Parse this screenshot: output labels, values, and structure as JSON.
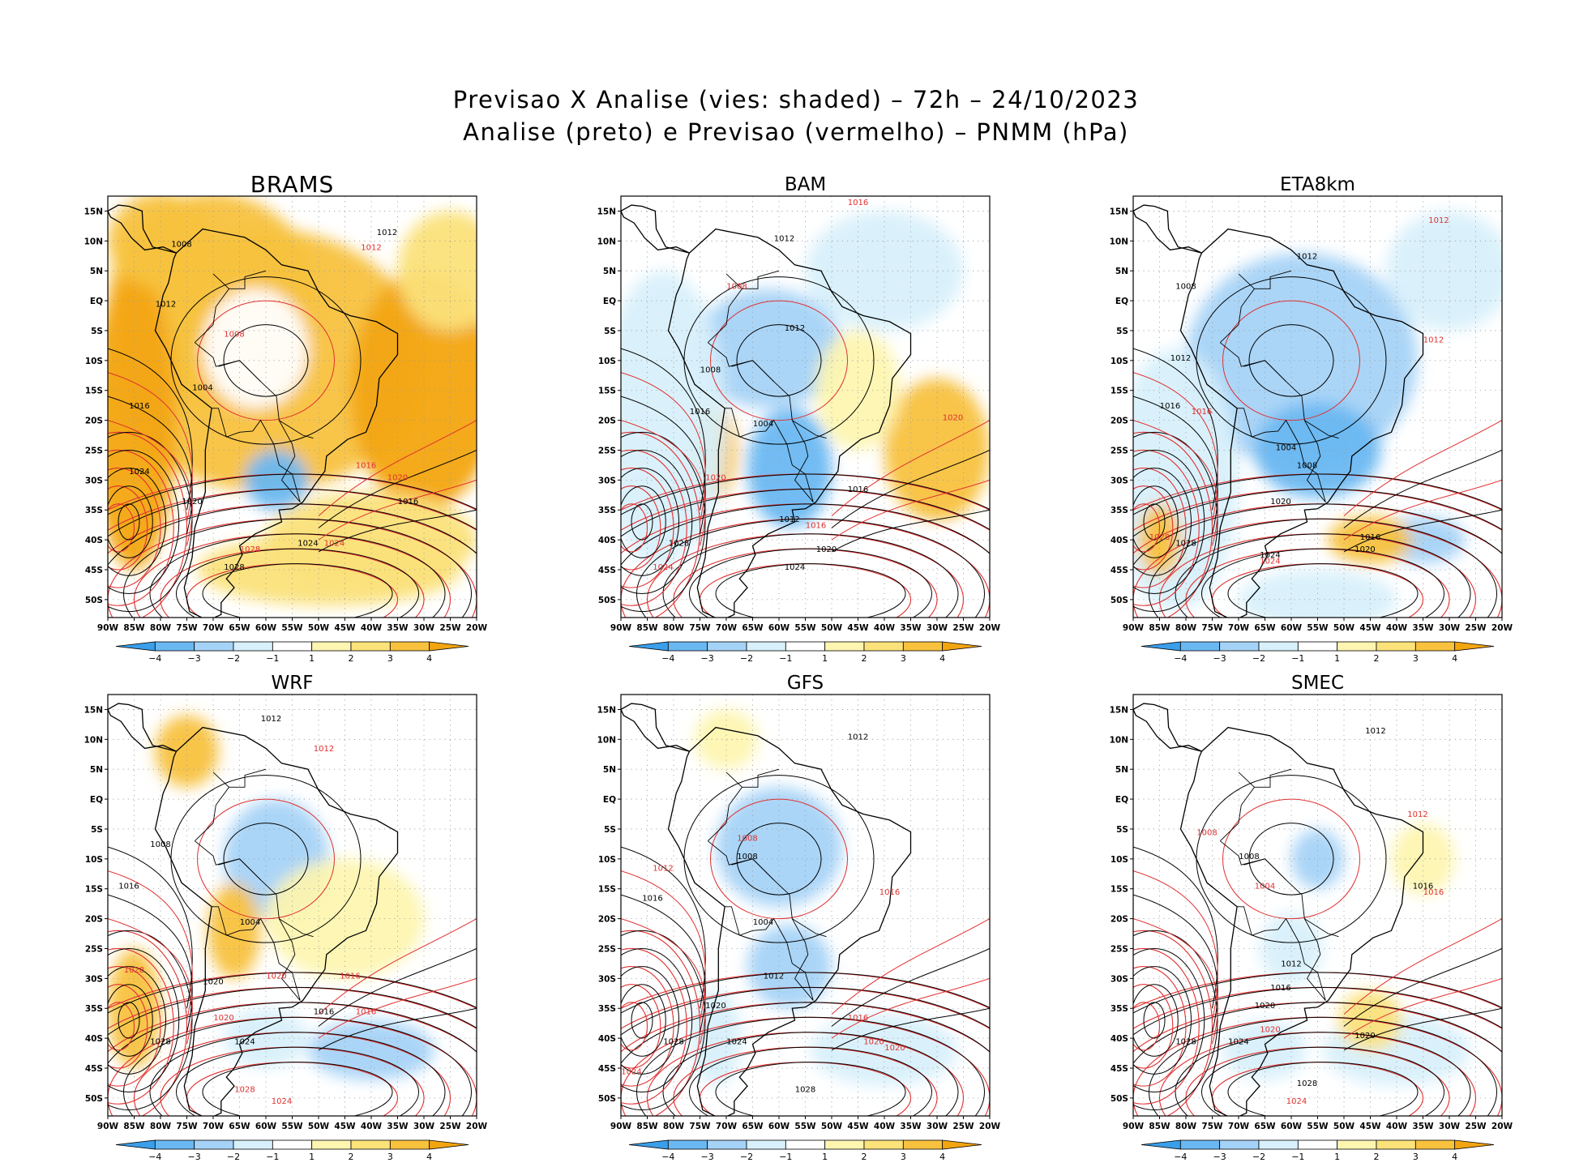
{
  "title_line1": "Previsao X Analise (vies: shaded) – 72h – 24/10/2023",
  "title_line2": "Analise (preto) e Previsao (vermelho) – PNMM (hPa)",
  "lat_labels": [
    "15N",
    "10N",
    "5N",
    "EQ",
    "5S",
    "10S",
    "15S",
    "20S",
    "25S",
    "30S",
    "35S",
    "40S",
    "45S",
    "50S"
  ],
  "lon_labels": [
    "90W",
    "85W",
    "80W",
    "75W",
    "70W",
    "65W",
    "60W",
    "55W",
    "50W",
    "45W",
    "40W",
    "35W",
    "30W",
    "25W",
    "20W"
  ],
  "colorbar": {
    "labels": [
      "−4",
      "−3",
      "−2",
      "−1",
      "1",
      "2",
      "3",
      "4"
    ],
    "colors": [
      "#3a9eea",
      "#6ab8f2",
      "#a5d3f7",
      "#d8f0fb",
      "#ffffff",
      "#fdf5b0",
      "#fbe27a",
      "#f8c23e",
      "#f3a510"
    ]
  },
  "colors": {
    "analysis_contour": "#000000",
    "forecast_contour": "#e03030"
  },
  "panels": [
    {
      "name": "BRAMS",
      "contour_labels": [
        {
          "text": "1008",
          "c": "k"
        },
        {
          "text": "1012",
          "c": "k"
        },
        {
          "text": "1012",
          "c": "r"
        },
        {
          "text": "1008",
          "c": "r"
        },
        {
          "text": "1012",
          "c": "k"
        },
        {
          "text": "1016",
          "c": "k"
        },
        {
          "text": "1004",
          "c": "k"
        },
        {
          "text": "1016",
          "c": "r"
        },
        {
          "text": "1020",
          "c": "k"
        },
        {
          "text": "1024",
          "c": "k"
        },
        {
          "text": "1020",
          "c": "r"
        },
        {
          "text": "1024",
          "c": "r"
        },
        {
          "text": "1028",
          "c": "r"
        },
        {
          "text": "1028",
          "c": "k"
        },
        {
          "text": "1016",
          "c": "k"
        },
        {
          "text": "1024",
          "c": "k"
        }
      ]
    },
    {
      "name": "BAM",
      "contour_labels": [
        {
          "text": "1016",
          "c": "r"
        },
        {
          "text": "1012",
          "c": "k"
        },
        {
          "text": "1008",
          "c": "r"
        },
        {
          "text": "1008",
          "c": "k"
        },
        {
          "text": "1012",
          "c": "k"
        },
        {
          "text": "1016",
          "c": "k"
        },
        {
          "text": "1004",
          "c": "k"
        },
        {
          "text": "1020",
          "c": "r"
        },
        {
          "text": "1016",
          "c": "r"
        },
        {
          "text": "1020",
          "c": "k"
        },
        {
          "text": "1024",
          "c": "r"
        },
        {
          "text": "1028",
          "c": "k"
        },
        {
          "text": "1024",
          "c": "k"
        },
        {
          "text": "1016",
          "c": "k"
        },
        {
          "text": "1012",
          "c": "k"
        },
        {
          "text": "1020",
          "c": "r"
        }
      ]
    },
    {
      "name": "ETA8km",
      "contour_labels": [
        {
          "text": "1012",
          "c": "r"
        },
        {
          "text": "1012",
          "c": "k"
        },
        {
          "text": "1008",
          "c": "k"
        },
        {
          "text": "1012",
          "c": "r"
        },
        {
          "text": "1012",
          "c": "k"
        },
        {
          "text": "1016",
          "c": "k"
        },
        {
          "text": "1016",
          "c": "r"
        },
        {
          "text": "1004",
          "c": "k"
        },
        {
          "text": "1008",
          "c": "k"
        },
        {
          "text": "1020",
          "c": "k"
        },
        {
          "text": "1016",
          "c": "k"
        },
        {
          "text": "1020",
          "c": "k"
        },
        {
          "text": "1028",
          "c": "r"
        },
        {
          "text": "1028",
          "c": "k"
        },
        {
          "text": "1024",
          "c": "k"
        },
        {
          "text": "1024",
          "c": "r"
        }
      ]
    },
    {
      "name": "WRF",
      "contour_labels": [
        {
          "text": "1012",
          "c": "k"
        },
        {
          "text": "1012",
          "c": "r"
        },
        {
          "text": "1008",
          "c": "k"
        },
        {
          "text": "1016",
          "c": "k"
        },
        {
          "text": "1004",
          "c": "k"
        },
        {
          "text": "1016",
          "c": "r"
        },
        {
          "text": "1020",
          "c": "k"
        },
        {
          "text": "1028",
          "c": "r"
        },
        {
          "text": "1028",
          "c": "k"
        },
        {
          "text": "1024",
          "c": "k"
        },
        {
          "text": "1020",
          "c": "r"
        },
        {
          "text": "1016",
          "c": "k"
        },
        {
          "text": "1016",
          "c": "r"
        },
        {
          "text": "1020",
          "c": "r"
        },
        {
          "text": "1028",
          "c": "r"
        },
        {
          "text": "1024",
          "c": "r"
        }
      ]
    },
    {
      "name": "GFS",
      "contour_labels": [
        {
          "text": "1012",
          "c": "k"
        },
        {
          "text": "1012",
          "c": "r"
        },
        {
          "text": "1008",
          "c": "r"
        },
        {
          "text": "1008",
          "c": "k"
        },
        {
          "text": "1016",
          "c": "k"
        },
        {
          "text": "1016",
          "c": "r"
        },
        {
          "text": "1004",
          "c": "k"
        },
        {
          "text": "1012",
          "c": "k"
        },
        {
          "text": "1020",
          "c": "k"
        },
        {
          "text": "1016",
          "c": "r"
        },
        {
          "text": "1020",
          "c": "r"
        },
        {
          "text": "1028",
          "c": "k"
        },
        {
          "text": "1024",
          "c": "k"
        },
        {
          "text": "1020",
          "c": "r"
        },
        {
          "text": "1024",
          "c": "r"
        },
        {
          "text": "1028",
          "c": "k"
        }
      ]
    },
    {
      "name": "SMEC",
      "contour_labels": [
        {
          "text": "1012",
          "c": "k"
        },
        {
          "text": "1008",
          "c": "r"
        },
        {
          "text": "1008",
          "c": "k"
        },
        {
          "text": "1012",
          "c": "r"
        },
        {
          "text": "1016",
          "c": "k"
        },
        {
          "text": "1016",
          "c": "r"
        },
        {
          "text": "1004",
          "c": "r"
        },
        {
          "text": "1012",
          "c": "k"
        },
        {
          "text": "1020",
          "c": "k"
        },
        {
          "text": "1016",
          "c": "k"
        },
        {
          "text": "1028",
          "c": "k"
        },
        {
          "text": "1024",
          "c": "k"
        },
        {
          "text": "1020",
          "c": "r"
        },
        {
          "text": "1028",
          "c": "k"
        },
        {
          "text": "1024",
          "c": "r"
        },
        {
          "text": "1020",
          "c": "k"
        }
      ]
    }
  ]
}
